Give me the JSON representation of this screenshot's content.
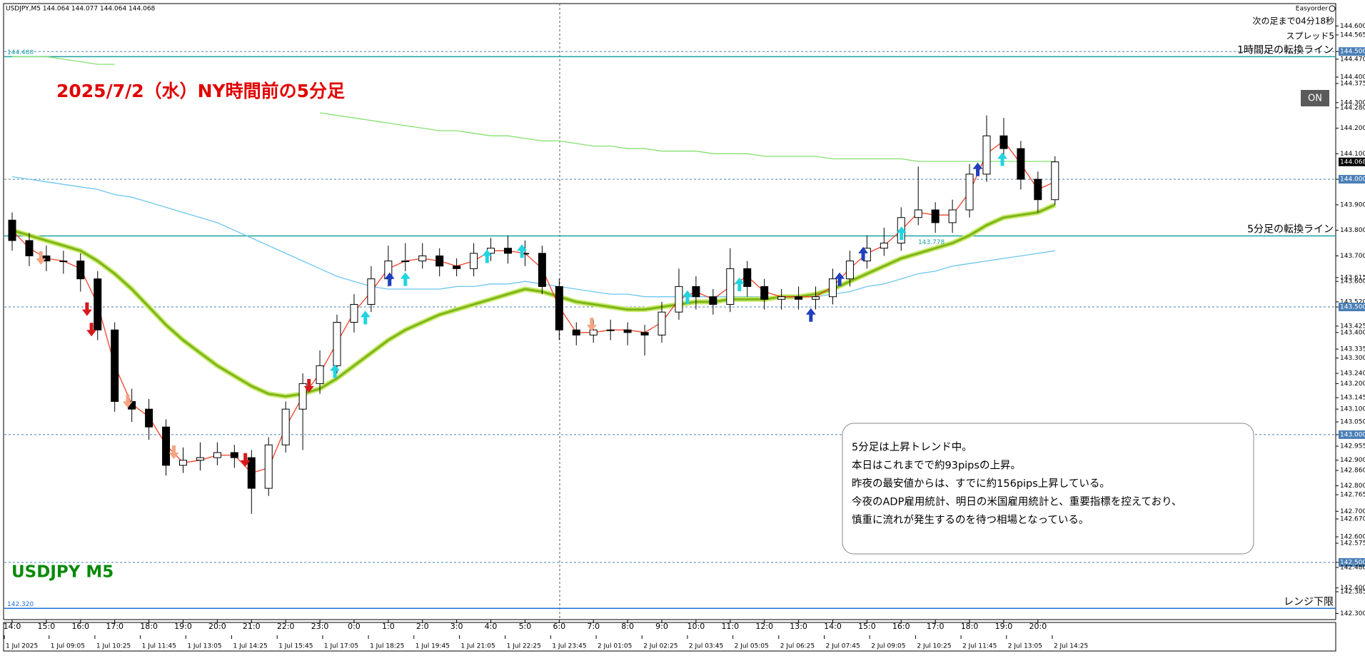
{
  "header": {
    "symbol_info": "USDJPY,M5  144.064 144.077 144.064 144.068",
    "ea_name": "Easyorder",
    "countdown": "次の足まで04分18秒",
    "spread": "スプレッド5",
    "button": "ON"
  },
  "chart_data": {
    "type": "candlestick",
    "title": "2025/7/2（水）NY時間前の5分足",
    "watermark": "USDJPY M5",
    "annotation_lines": [
      "5分足は上昇トレンド中。",
      "本日はこれまでで約93pipsの上昇。",
      "昨夜の最安値からは、すでに約156pips上昇している。",
      "今夜のADP雇用統計、明日の米国雇用統計と、重要指標を控えており、",
      "慎重に流れが発生するのを待つ相場となっている。"
    ],
    "xlim": [
      -0.23,
      38.71
    ],
    "ylim": [
      142.276,
      144.685
    ],
    "x": [
      0,
      0.5,
      1,
      1.5,
      2,
      2.5,
      3,
      3.5,
      4,
      4.5,
      5,
      5.5,
      6,
      6.5,
      7,
      7.5,
      8,
      8.5,
      9,
      9.5,
      10,
      10.5,
      11,
      11.5,
      12,
      12.5,
      13,
      13.5,
      14,
      14.5,
      15,
      15.5,
      16,
      16.5,
      17,
      17.5,
      18,
      18.5,
      19,
      19.5,
      20,
      20.5,
      21,
      21.5,
      22,
      22.5,
      23,
      23.5,
      24,
      24.5,
      25,
      25.5,
      26,
      26.5,
      27,
      27.5,
      28,
      28.5,
      29,
      29.5,
      30,
      30.5
    ],
    "open": [
      143.84,
      143.76,
      143.7,
      143.68,
      143.68,
      143.61,
      143.41,
      143.13,
      143.1,
      143.03,
      142.88,
      142.9,
      142.91,
      142.93,
      142.91,
      142.79,
      142.96,
      143.1,
      143.2,
      143.27,
      143.44,
      143.51,
      143.61,
      143.68,
      143.68,
      143.7,
      143.66,
      143.65,
      143.71,
      143.73,
      143.71,
      143.71,
      143.58,
      143.41,
      143.39,
      143.41,
      143.41,
      143.4,
      143.39,
      143.48,
      143.58,
      143.54,
      143.51,
      143.65,
      143.58,
      143.53,
      143.54,
      143.53,
      143.54,
      143.61,
      143.68,
      143.73,
      143.75,
      143.85,
      143.88,
      143.83,
      143.88,
      144.02,
      144.17,
      144.12,
      144.0,
      143.92
    ],
    "high": [
      143.87,
      143.79,
      143.74,
      143.72,
      143.71,
      143.64,
      143.44,
      143.18,
      143.14,
      143.06,
      142.95,
      142.97,
      142.97,
      142.96,
      142.94,
      142.99,
      143.13,
      143.24,
      143.33,
      143.47,
      143.55,
      143.66,
      143.74,
      143.75,
      143.75,
      143.73,
      143.69,
      143.75,
      143.77,
      143.78,
      143.76,
      143.74,
      143.61,
      143.44,
      143.45,
      143.45,
      143.44,
      143.43,
      143.52,
      143.65,
      143.62,
      143.57,
      143.73,
      143.68,
      143.61,
      143.57,
      143.58,
      143.58,
      143.65,
      143.72,
      143.78,
      143.81,
      143.89,
      144.05,
      143.91,
      143.92,
      144.06,
      144.25,
      144.24,
      144.15,
      144.03,
      144.09
    ],
    "low": [
      143.72,
      143.66,
      143.64,
      143.63,
      143.56,
      143.37,
      143.09,
      143.05,
      142.98,
      142.84,
      142.85,
      142.86,
      142.88,
      142.87,
      142.69,
      142.76,
      142.93,
      142.94,
      143.16,
      143.24,
      143.4,
      143.48,
      143.58,
      143.64,
      143.65,
      143.62,
      143.62,
      143.62,
      143.68,
      143.67,
      143.66,
      143.55,
      143.37,
      143.35,
      143.36,
      143.37,
      143.35,
      143.31,
      143.36,
      143.45,
      143.49,
      143.47,
      143.48,
      143.54,
      143.49,
      143.49,
      143.49,
      143.49,
      143.51,
      143.58,
      143.65,
      143.7,
      143.72,
      143.82,
      143.79,
      143.79,
      143.85,
      143.99,
      144.08,
      143.96,
      143.87,
      143.9
    ],
    "close": [
      143.76,
      143.7,
      143.68,
      143.68,
      143.61,
      143.41,
      143.13,
      143.1,
      143.03,
      142.88,
      142.9,
      142.91,
      142.93,
      142.91,
      142.79,
      142.96,
      143.1,
      143.2,
      143.27,
      143.44,
      143.51,
      143.61,
      143.68,
      143.68,
      143.7,
      143.66,
      143.65,
      143.71,
      143.73,
      143.71,
      143.71,
      143.58,
      143.41,
      143.39,
      143.41,
      143.41,
      143.4,
      143.39,
      143.48,
      143.58,
      143.54,
      143.51,
      143.65,
      143.58,
      143.53,
      143.54,
      143.53,
      143.54,
      143.61,
      143.68,
      143.73,
      143.75,
      143.85,
      143.88,
      143.83,
      143.88,
      144.02,
      144.17,
      144.12,
      144.0,
      143.92,
      144.068
    ],
    "up_color": "#ffffff",
    "down_color": "#000000",
    "series": [
      {
        "color": "#86e070",
        "style": "thin",
        "values": [
          144.48,
          144.48,
          144.48,
          144.47,
          144.46,
          144.45,
          144.45,
          null,
          null,
          null,
          null,
          null,
          null,
          null,
          null,
          null,
          null,
          null,
          144.26,
          144.25,
          144.24,
          144.23,
          144.22,
          144.21,
          144.2,
          144.19,
          144.19,
          144.18,
          144.17,
          144.17,
          144.16,
          144.15,
          144.15,
          144.14,
          144.13,
          144.13,
          144.12,
          144.12,
          144.11,
          144.11,
          144.11,
          144.1,
          144.1,
          144.1,
          144.09,
          144.09,
          144.09,
          144.09,
          144.08,
          144.08,
          144.08,
          144.08,
          144.08,
          144.07,
          144.07,
          144.07,
          144.07,
          144.07,
          144.07,
          144.07,
          144.07,
          144.07
        ]
      },
      {
        "color": "#6ec6f0",
        "style": "thin",
        "values": [
          144.01,
          144.0,
          143.99,
          143.98,
          143.97,
          143.96,
          143.94,
          143.93,
          143.91,
          143.89,
          143.87,
          143.85,
          143.83,
          143.8,
          143.77,
          143.74,
          143.71,
          143.68,
          143.65,
          143.62,
          143.6,
          143.58,
          143.57,
          143.57,
          143.57,
          143.57,
          143.58,
          143.58,
          143.59,
          143.59,
          143.6,
          143.59,
          143.58,
          143.57,
          143.56,
          143.55,
          143.55,
          143.54,
          143.54,
          143.54,
          143.54,
          143.54,
          143.54,
          143.54,
          143.54,
          143.54,
          143.54,
          143.54,
          143.55,
          143.56,
          143.58,
          143.59,
          143.61,
          143.63,
          143.64,
          143.66,
          143.67,
          143.68,
          143.69,
          143.7,
          143.71,
          143.72
        ]
      },
      {
        "color": "#7cb518",
        "style": "thick",
        "values": [
          143.8,
          143.78,
          143.76,
          143.74,
          143.72,
          143.68,
          143.63,
          143.57,
          143.5,
          143.43,
          143.37,
          143.32,
          143.27,
          143.23,
          143.19,
          143.16,
          143.15,
          143.16,
          143.18,
          143.22,
          143.27,
          143.32,
          143.37,
          143.41,
          143.44,
          143.47,
          143.49,
          143.51,
          143.53,
          143.55,
          143.57,
          143.56,
          143.54,
          143.52,
          143.51,
          143.5,
          143.49,
          143.49,
          143.5,
          143.51,
          143.52,
          143.52,
          143.53,
          143.53,
          143.53,
          143.54,
          143.54,
          143.55,
          143.57,
          143.6,
          143.63,
          143.66,
          143.69,
          143.71,
          143.73,
          143.75,
          143.78,
          143.82,
          143.85,
          143.86,
          143.87,
          143.9
        ]
      },
      {
        "color": "#f0412a",
        "style": "thin",
        "values": [
          143.8,
          143.73,
          143.69,
          143.68,
          143.65,
          143.51,
          143.27,
          143.12,
          143.07,
          142.96,
          142.89,
          142.9,
          142.92,
          142.92,
          142.85,
          142.87,
          143.03,
          143.15,
          143.24,
          143.36,
          143.48,
          143.56,
          143.65,
          143.68,
          143.69,
          143.68,
          143.66,
          143.68,
          143.72,
          143.72,
          143.71,
          143.65,
          143.5,
          143.4,
          143.4,
          143.41,
          143.41,
          143.4,
          143.44,
          143.53,
          143.56,
          143.53,
          143.58,
          143.62,
          143.56,
          143.54,
          143.54,
          143.54,
          143.58,
          143.65,
          143.71,
          143.74,
          143.8,
          143.87,
          143.86,
          143.86,
          143.95,
          144.1,
          144.15,
          144.06,
          143.96,
          143.99
        ]
      }
    ],
    "signals": {
      "x": [
        0.84,
        2.19,
        2.32,
        3.38,
        4.73,
        6.82,
        8.68,
        9.44,
        10.33,
        11.04,
        11.5,
        13.89,
        14.91,
        16.95,
        19.75,
        21.27,
        23.36,
        24.2,
        24.89,
        26.01,
        28.24,
        28.96
      ],
      "values": [
        143.69,
        143.49,
        143.41,
        143.13,
        142.93,
        142.9,
        143.19,
        143.25,
        143.46,
        143.61,
        143.61,
        143.7,
        143.72,
        143.43,
        143.54,
        143.59,
        143.47,
        143.61,
        143.71,
        143.79,
        144.04,
        144.08
      ],
      "direction": [
        "down",
        "down",
        "down",
        "down",
        "down",
        "down",
        "down",
        "up",
        "up",
        "up",
        "up",
        "up",
        "up",
        "down",
        "up",
        "up",
        "up",
        "up",
        "up",
        "up",
        "up",
        "up"
      ],
      "colors": [
        "#f4a582",
        "#d7191c",
        "#d7191c",
        "#f4a582",
        "#f4a582",
        "#d7191c",
        "#d7191c",
        "#22d3e0",
        "#22d3e0",
        "#1f3fbf",
        "#22d3e0",
        "#22d3e0",
        "#22d3e0",
        "#f4a582",
        "#22d3e0",
        "#22d3e0",
        "#1f3fbf",
        "#1f3fbf",
        "#1f3fbf",
        "#22d3e0",
        "#1f3fbf",
        "#22d3e0"
      ]
    },
    "levels": {
      "values": [
        144.48,
        143.778,
        142.32
      ],
      "value_labels": [
        "144.480",
        "143.778",
        "142.320"
      ],
      "names": [
        "1時間足の転換ライン",
        "5分足の転換ライン",
        "レンジ下限"
      ],
      "colors": [
        "#1fa3a3",
        "#1fa3a3",
        "#1e6fd9"
      ]
    },
    "grid_levels": [
      144.5,
      144.0,
      143.5,
      143.0,
      142.5
    ],
    "grid_color": "#4a7fb5",
    "current_price": {
      "value": 144.068,
      "label": "144.068"
    },
    "yticks": [
      {
        "value": 144.6,
        "label": "144.600"
      },
      144.565,
      {
        "value": 144.5,
        "label": "144.500"
      },
      {
        "value": 144.47,
        "label": "144.470"
      },
      {
        "value": 144.4,
        "label": "144.400"
      },
      144.375,
      {
        "value": 144.3,
        "label": "144.300"
      },
      {
        "value": 144.28,
        "label": "144.280"
      },
      {
        "value": 144.2,
        "label": "144.200"
      },
      {
        "value": 144.1,
        "label": "144.100"
      },
      {
        "value": 144.0,
        "label": "144.000"
      },
      {
        "value": 143.9,
        "label": "143.900"
      },
      {
        "value": 143.8,
        "label": "143.800"
      },
      {
        "value": 143.7,
        "label": "143.700"
      },
      143.615,
      {
        "value": 143.6,
        "label": "143.600"
      },
      {
        "value": 143.52,
        "label": "143.520"
      },
      {
        "value": 143.5,
        "label": "143.500"
      },
      143.425,
      {
        "value": 143.4,
        "label": "143.400"
      },
      143.335,
      {
        "value": 143.3,
        "label": "143.300"
      },
      {
        "value": 143.24,
        "label": "143.240"
      },
      {
        "value": 143.2,
        "label": "143.200"
      },
      143.145,
      {
        "value": 143.1,
        "label": "143.100"
      },
      {
        "value": 143.05,
        "label": "143.050"
      },
      {
        "value": 143.0,
        "label": "143.000"
      },
      142.955,
      {
        "value": 142.9,
        "label": "142.900"
      },
      {
        "value": 142.86,
        "label": "142.860"
      },
      {
        "value": 142.8,
        "label": "142.800"
      },
      142.765,
      {
        "value": 142.7,
        "label": "142.700"
      },
      {
        "value": 142.67,
        "label": "142.670"
      },
      {
        "value": 142.6,
        "label": "142.600"
      },
      142.575,
      {
        "value": 142.5,
        "label": "142.500"
      },
      {
        "value": 142.48,
        "label": "142.480"
      },
      {
        "value": 142.4,
        "label": "142.400"
      },
      142.385,
      {
        "value": 142.3,
        "label": "142.300"
      }
    ],
    "xticks": [
      {
        "value": 0,
        "label": "14:0"
      },
      {
        "value": 1,
        "label": "15:0"
      },
      {
        "value": 2,
        "label": "16:0"
      },
      {
        "value": 3,
        "label": "17:0"
      },
      {
        "value": 4,
        "label": "18:0"
      },
      {
        "value": 5,
        "label": "19:0"
      },
      {
        "value": 6,
        "label": "20:0"
      },
      {
        "value": 7,
        "label": "21:0"
      },
      {
        "value": 8,
        "label": "22:0"
      },
      {
        "value": 9,
        "label": "23:0"
      },
      {
        "value": 10,
        "label": "0:0"
      },
      {
        "value": 11,
        "label": "1:0"
      },
      {
        "value": 12,
        "label": "2:0"
      },
      {
        "value": 13,
        "label": "3:0"
      },
      {
        "value": 14,
        "label": "4:0"
      },
      {
        "value": 15,
        "label": "5:0"
      },
      {
        "value": 16,
        "label": "6:0"
      },
      {
        "value": 17,
        "label": "7:0"
      },
      {
        "value": 18,
        "label": "8:0"
      },
      {
        "value": 19,
        "label": "9:0"
      },
      {
        "value": 20,
        "label": "10:0"
      },
      {
        "value": 21,
        "label": "11:0"
      },
      {
        "value": 22,
        "label": "12:0"
      },
      {
        "value": 23,
        "label": "13:0"
      },
      {
        "value": 24,
        "label": "14:0"
      },
      {
        "value": 25,
        "label": "15:0"
      },
      {
        "value": 26,
        "label": "16:0"
      },
      {
        "value": 27,
        "label": "17:0"
      },
      {
        "value": 28,
        "label": "18:0"
      },
      {
        "value": 29,
        "label": "19:0"
      },
      {
        "value": 30,
        "label": "20:0"
      }
    ],
    "xticks2": [
      {
        "value": -0.23,
        "label": "1 Jul 2025"
      },
      {
        "value": 1.08,
        "label": "1 Jul 09:05"
      },
      {
        "value": 2.42,
        "label": "1 Jul 10:25"
      },
      {
        "value": 3.75,
        "label": "1 Jul 11:45"
      },
      {
        "value": 5.08,
        "label": "1 Jul 13:05"
      },
      {
        "value": 6.42,
        "label": "1 Jul 14:25"
      },
      {
        "value": 7.75,
        "label": "1 Jul 15:45"
      },
      {
        "value": 9.08,
        "label": "1 Jul 17:05"
      },
      {
        "value": 10.42,
        "label": "1 Jul 18:25"
      },
      {
        "value": 11.75,
        "label": "1 Jul 19:45"
      },
      {
        "value": 13.08,
        "label": "1 Jul 21:05"
      },
      {
        "value": 14.42,
        "label": "1 Jul 22:25"
      },
      {
        "value": 15.75,
        "label": "1 Jul 23:45"
      },
      {
        "value": 17.08,
        "label": "2 Jul 01:05"
      },
      {
        "value": 18.42,
        "label": "2 Jul 02:25"
      },
      {
        "value": 19.75,
        "label": "2 Jul 03:45"
      },
      {
        "value": 21.08,
        "label": "2 Jul 05:05"
      },
      {
        "value": 22.42,
        "label": "2 Jul 06:25"
      },
      {
        "value": 23.75,
        "label": "2 Jul 07:45"
      },
      {
        "value": 25.08,
        "label": "2 Jul 09:05"
      },
      {
        "value": 26.42,
        "label": "2 Jul 10:25"
      },
      {
        "value": 27.75,
        "label": "2 Jul 11:45"
      },
      {
        "value": 29.08,
        "label": "2 Jul 13:05"
      },
      {
        "value": 30.42,
        "label": "2 Jul 14:25"
      }
    ]
  }
}
